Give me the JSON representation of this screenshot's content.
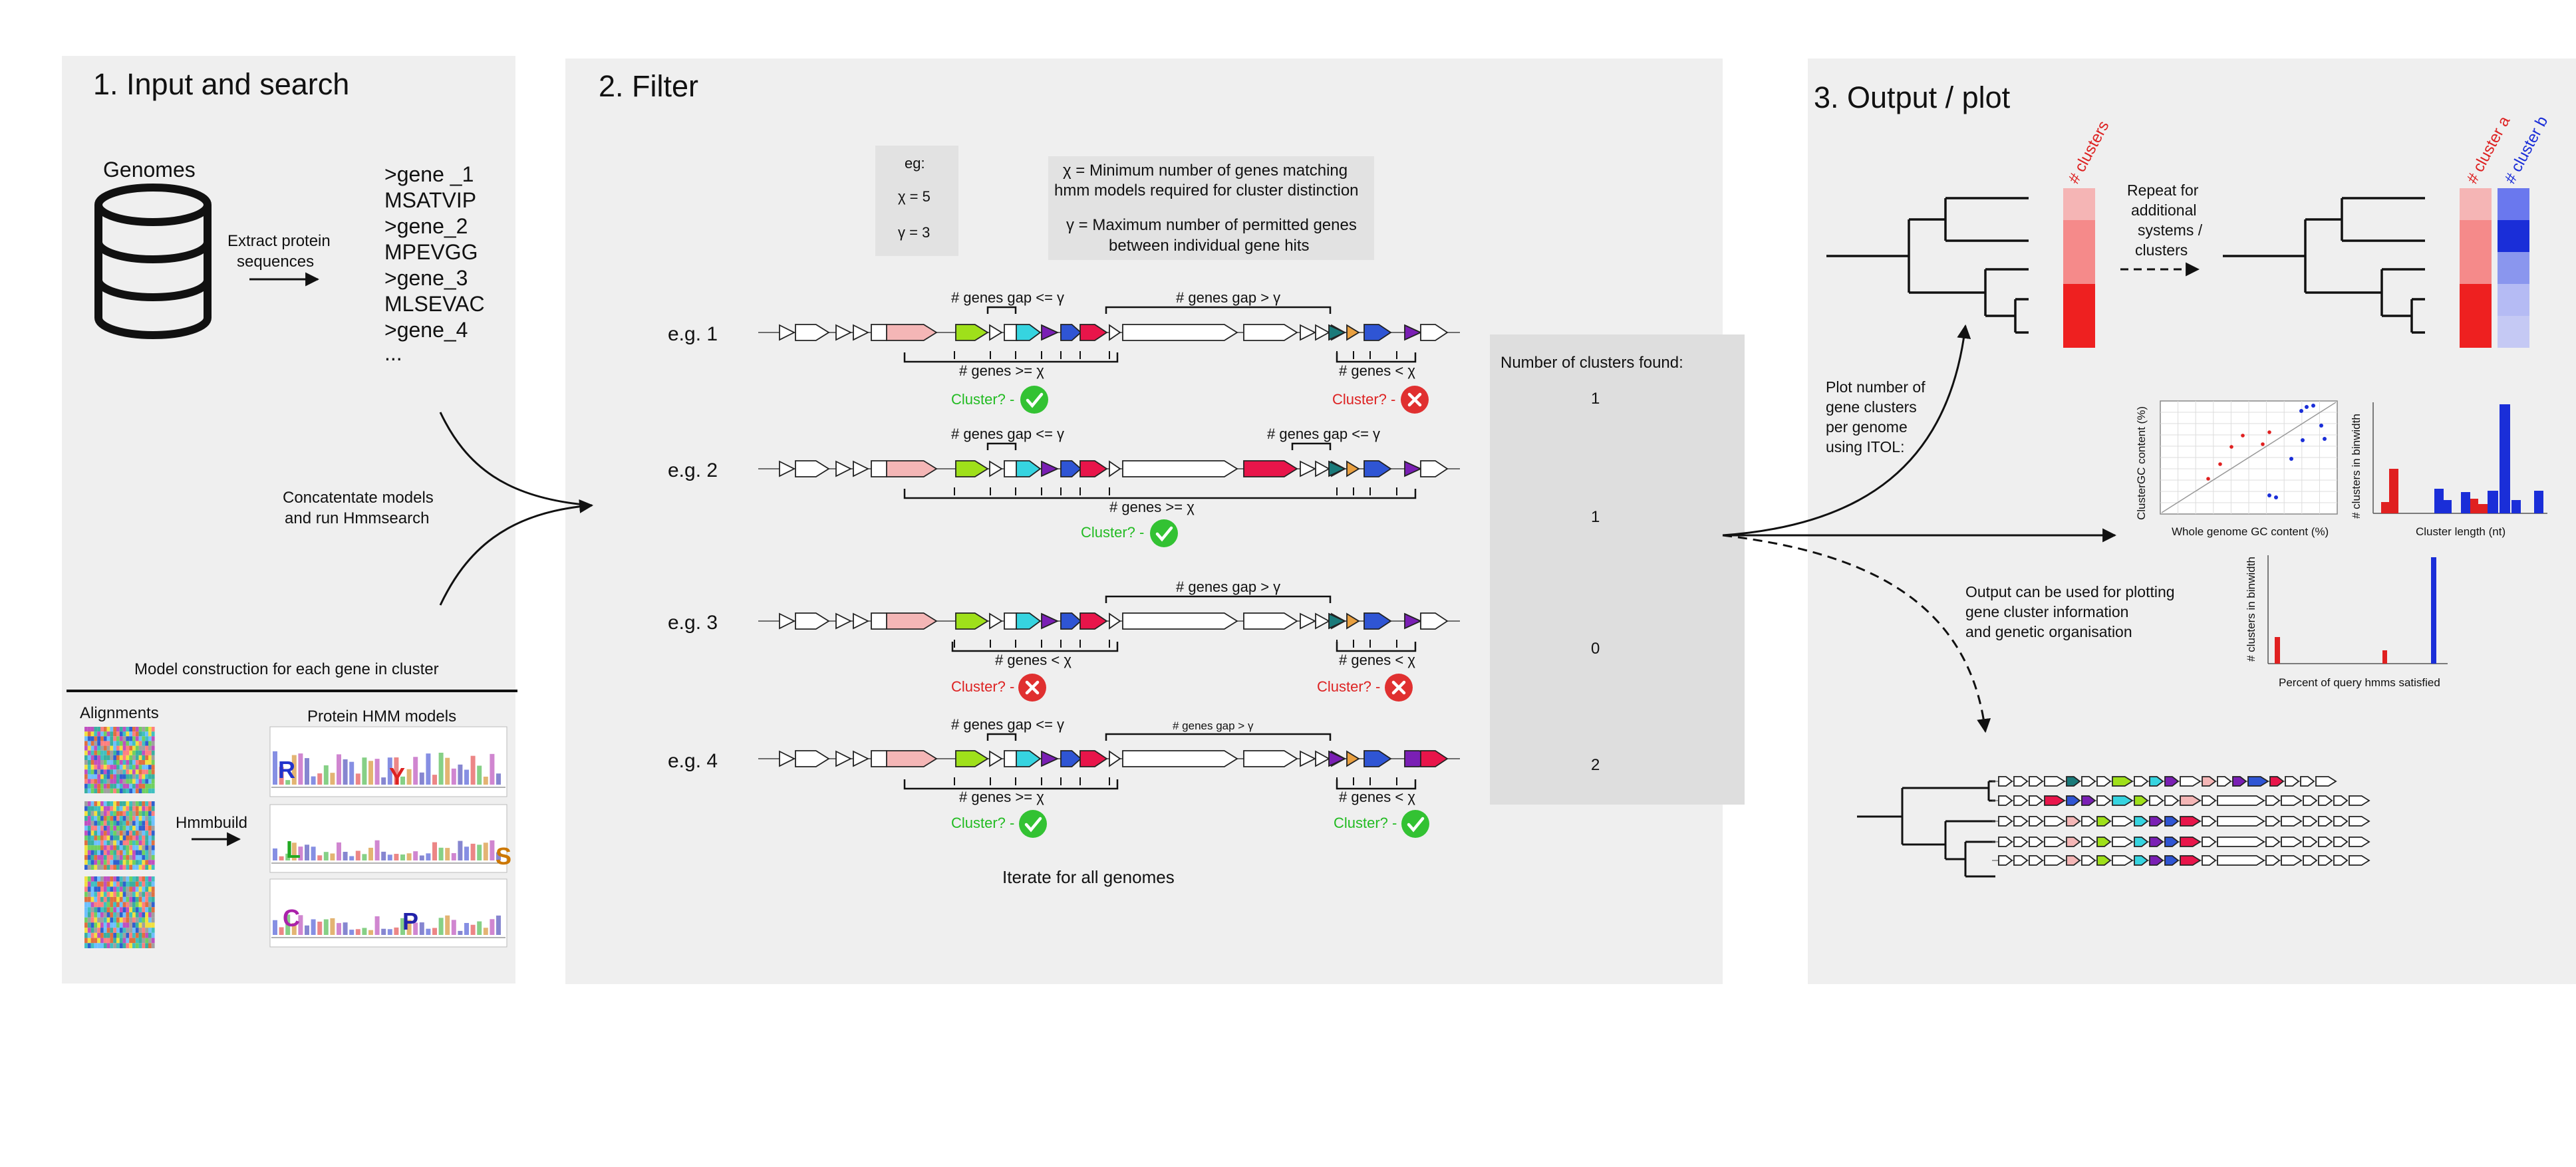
{
  "panels": {
    "input": {
      "title": "1. Input and search",
      "genomes_label": "Genomes",
      "extract_label_1": "Extract protein",
      "extract_label_2": "sequences",
      "fasta": [
        ">gene _1",
        "MSATVIP",
        ">gene_2",
        "MPEVGG",
        ">gene_3",
        "MLSEVAC",
        ">gene_4",
        "..."
      ],
      "concat_1": "Concatentate models",
      "concat_2": "and run Hmmsearch",
      "model_construction": "Model construction for each gene in cluster",
      "alignments_label": "Alignments",
      "hmm_models_label": "Protein HMM models",
      "hmmbuild_label": "Hmmbuild",
      "logo_letters": [
        "R",
        "Y",
        "L",
        "S",
        "C",
        "P"
      ]
    },
    "filter": {
      "title": "2. Filter",
      "eg_box": {
        "title": "eg:",
        "x": "χ = 5",
        "y": "γ = 3"
      },
      "definitions": {
        "x_def_1": "χ = Minimum number of genes matching",
        "x_def_2": "hmm models required for cluster distinction",
        "y_def_1": "γ = Maximum number of permitted genes",
        "y_def_2": "between individual gene hits"
      },
      "rows": [
        {
          "label": "e.g. 1",
          "top_annotations": [
            "# genes gap <= γ",
            "# genes gap > γ"
          ],
          "bottom_annotations": [
            "# genes >= χ",
            "# genes < χ"
          ],
          "results": [
            {
              "text": "Cluster? -",
              "ok": true
            },
            {
              "text": "Cluster? -",
              "ok": false
            }
          ]
        },
        {
          "label": "e.g. 2",
          "top_annotations": [
            "# genes gap <= γ",
            "# genes gap <= γ"
          ],
          "bottom_annotations": [
            "# genes >= χ"
          ],
          "results": [
            {
              "text": "Cluster? -",
              "ok": true
            }
          ]
        },
        {
          "label": "e.g. 3",
          "top_annotations": [
            "# genes gap > γ"
          ],
          "bottom_annotations": [
            "# genes < χ",
            "# genes < χ"
          ],
          "results": [
            {
              "text": "Cluster? -",
              "ok": false
            },
            {
              "text": "Cluster? -",
              "ok": false
            }
          ]
        },
        {
          "label": "e.g. 4",
          "top_annotations": [
            "# genes gap <= γ",
            "# genes gap > γ"
          ],
          "bottom_annotations": [
            "# genes >= χ",
            "# genes < χ"
          ],
          "results": [
            {
              "text": "Cluster? -",
              "ok": true
            },
            {
              "text": "Cluster? -",
              "ok": true
            }
          ]
        }
      ],
      "clusters_found_label": "Number of clusters found:",
      "clusters_found": [
        "1",
        "1",
        "0",
        "2"
      ],
      "iterate_label": "Iterate for all genomes"
    },
    "output": {
      "title": "3. Output / plot",
      "clusters_label": "# clusters",
      "cluster_a_label": "# cluster a",
      "cluster_b_label": "# cluster b",
      "repeat_text": [
        "Repeat for",
        "additional",
        "systems /",
        "clusters"
      ],
      "plot_text": [
        "Plot number of",
        "gene clusters",
        "per genome",
        "using ITOL:"
      ],
      "output_text": [
        "Output can be used for plotting",
        "gene cluster information",
        "and genetic organisation"
      ],
      "scatter": {
        "ylabel": "ClusterGC content (%)",
        "xlabel": "Whole genome GC content (%)"
      },
      "hist1": {
        "ylabel": "# clusters in binwidth",
        "xlabel": "Cluster length (nt)"
      },
      "hist2": {
        "ylabel": "# clusters in binwidth",
        "xlabel": "Percent of query hmms satisfied"
      }
    }
  },
  "colors": {
    "panel_bg": "#efefef",
    "pink": "#f4b6b6",
    "lime": "#9fe01a",
    "cyan": "#36d4e0",
    "purple": "#7a1fb4",
    "blue": "#2f55d4",
    "crimson": "#e8154a",
    "teal": "#1a7a7a",
    "orange": "#e9a040",
    "ok_green": "#33c233",
    "fail_red": "#e03030"
  }
}
